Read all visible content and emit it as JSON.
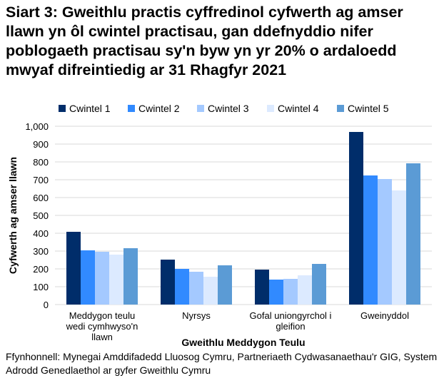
{
  "chart_data": {
    "type": "bar",
    "title": "Siart 3: Gweithlu practis cyffredinol cyfwerth ag amser llawn yn ôl cwintel practisau, gan ddefnyddio nifer poblogaeth practisau sy'n byw yn yr 20% o ardaloedd mwyaf difreintiedig ar 31 Rhagfyr 2021",
    "xlabel": "Gweithlu Meddygon Teulu",
    "ylabel": "Cyfwerth ag amser llawn",
    "ylim": [
      0,
      1000
    ],
    "yticks": [
      "0",
      "100",
      "200",
      "300",
      "400",
      "500",
      "600",
      "700",
      "800",
      "900",
      "1,000"
    ],
    "grid": true,
    "legend_position": "top",
    "categories": [
      [
        "Meddygon teulu",
        "wedi cymhwyso'n",
        "llawn"
      ],
      [
        "Nyrsys"
      ],
      [
        "Gofal uniongyrchol i",
        "gleifion"
      ],
      [
        "Gweinyddol"
      ]
    ],
    "series": [
      {
        "name": "Cwintel 1",
        "color": "#002d6a",
        "values": [
          408,
          252,
          196,
          968
        ]
      },
      {
        "name": "Cwintel 2",
        "color": "#318aff",
        "values": [
          304,
          200,
          140,
          724
        ]
      },
      {
        "name": "Cwintel 3",
        "color": "#a4c9ff",
        "values": [
          296,
          184,
          144,
          704
        ]
      },
      {
        "name": "Cwintel 4",
        "color": "#dceaff",
        "values": [
          280,
          156,
          164,
          640
        ]
      },
      {
        "name": "Cwintel 5",
        "color": "#5b9bd5",
        "values": [
          316,
          220,
          228,
          792
        ]
      }
    ],
    "source": "Ffynhonnell: Mynegai Amddifadedd Lluosog Cymru, Partneriaeth Cydwasanaethau'r GIG, System Adrodd Genedlaethol ar gyfer Gweithlu Cymru"
  }
}
